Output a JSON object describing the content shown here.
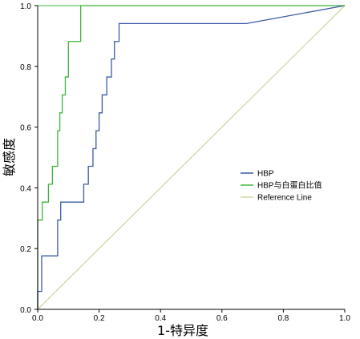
{
  "chart_data": {
    "type": "line",
    "title": "",
    "xlabel": "1-特异度",
    "ylabel": "敏感度",
    "xlim": [
      0,
      1
    ],
    "ylim": [
      0,
      1
    ],
    "x_ticks": [
      "0.0",
      "0.2",
      "0.4",
      "0.6",
      "0.8",
      "1.0"
    ],
    "y_ticks": [
      "0.0",
      "0.2",
      "0.4",
      "0.6",
      "0.8",
      "1.0"
    ],
    "grid": false,
    "legend_position": "center-right",
    "series": [
      {
        "name": "HBP",
        "color": "#3b5aa6",
        "x": [
          0.0,
          0.0,
          0.013,
          0.013,
          0.065,
          0.065,
          0.075,
          0.075,
          0.15,
          0.15,
          0.165,
          0.165,
          0.18,
          0.18,
          0.19,
          0.19,
          0.2,
          0.2,
          0.21,
          0.21,
          0.225,
          0.225,
          0.24,
          0.24,
          0.25,
          0.25,
          0.265,
          0.265,
          0.33,
          0.33,
          0.405,
          0.405,
          0.545,
          0.545,
          0.68,
          1.0
        ],
        "y": [
          0.0,
          0.059,
          0.059,
          0.176,
          0.176,
          0.294,
          0.294,
          0.353,
          0.353,
          0.412,
          0.412,
          0.471,
          0.471,
          0.529,
          0.529,
          0.588,
          0.588,
          0.647,
          0.647,
          0.706,
          0.706,
          0.765,
          0.765,
          0.824,
          0.824,
          0.882,
          0.882,
          0.941,
          0.941,
          0.941,
          0.941,
          0.941,
          0.941,
          0.941,
          0.941,
          1.0
        ]
      },
      {
        "name": "HBP与白蛋白比值",
        "color": "#3db53d",
        "x": [
          0.0,
          0.0,
          0.015,
          0.015,
          0.035,
          0.035,
          0.048,
          0.048,
          0.065,
          0.065,
          0.072,
          0.072,
          0.08,
          0.08,
          0.09,
          0.09,
          0.1,
          0.1,
          0.12,
          0.12,
          0.14,
          0.14,
          1.0
        ],
        "y": [
          0.0,
          0.294,
          0.294,
          0.353,
          0.353,
          0.412,
          0.412,
          0.471,
          0.471,
          0.588,
          0.588,
          0.647,
          0.647,
          0.706,
          0.706,
          0.765,
          0.765,
          0.882,
          0.882,
          0.882,
          0.882,
          1.0,
          1.0
        ]
      },
      {
        "name": "Reference Line",
        "color": "#d2d7a8",
        "x": [
          0.0,
          1.0
        ],
        "y": [
          0.0,
          1.0
        ]
      }
    ]
  }
}
